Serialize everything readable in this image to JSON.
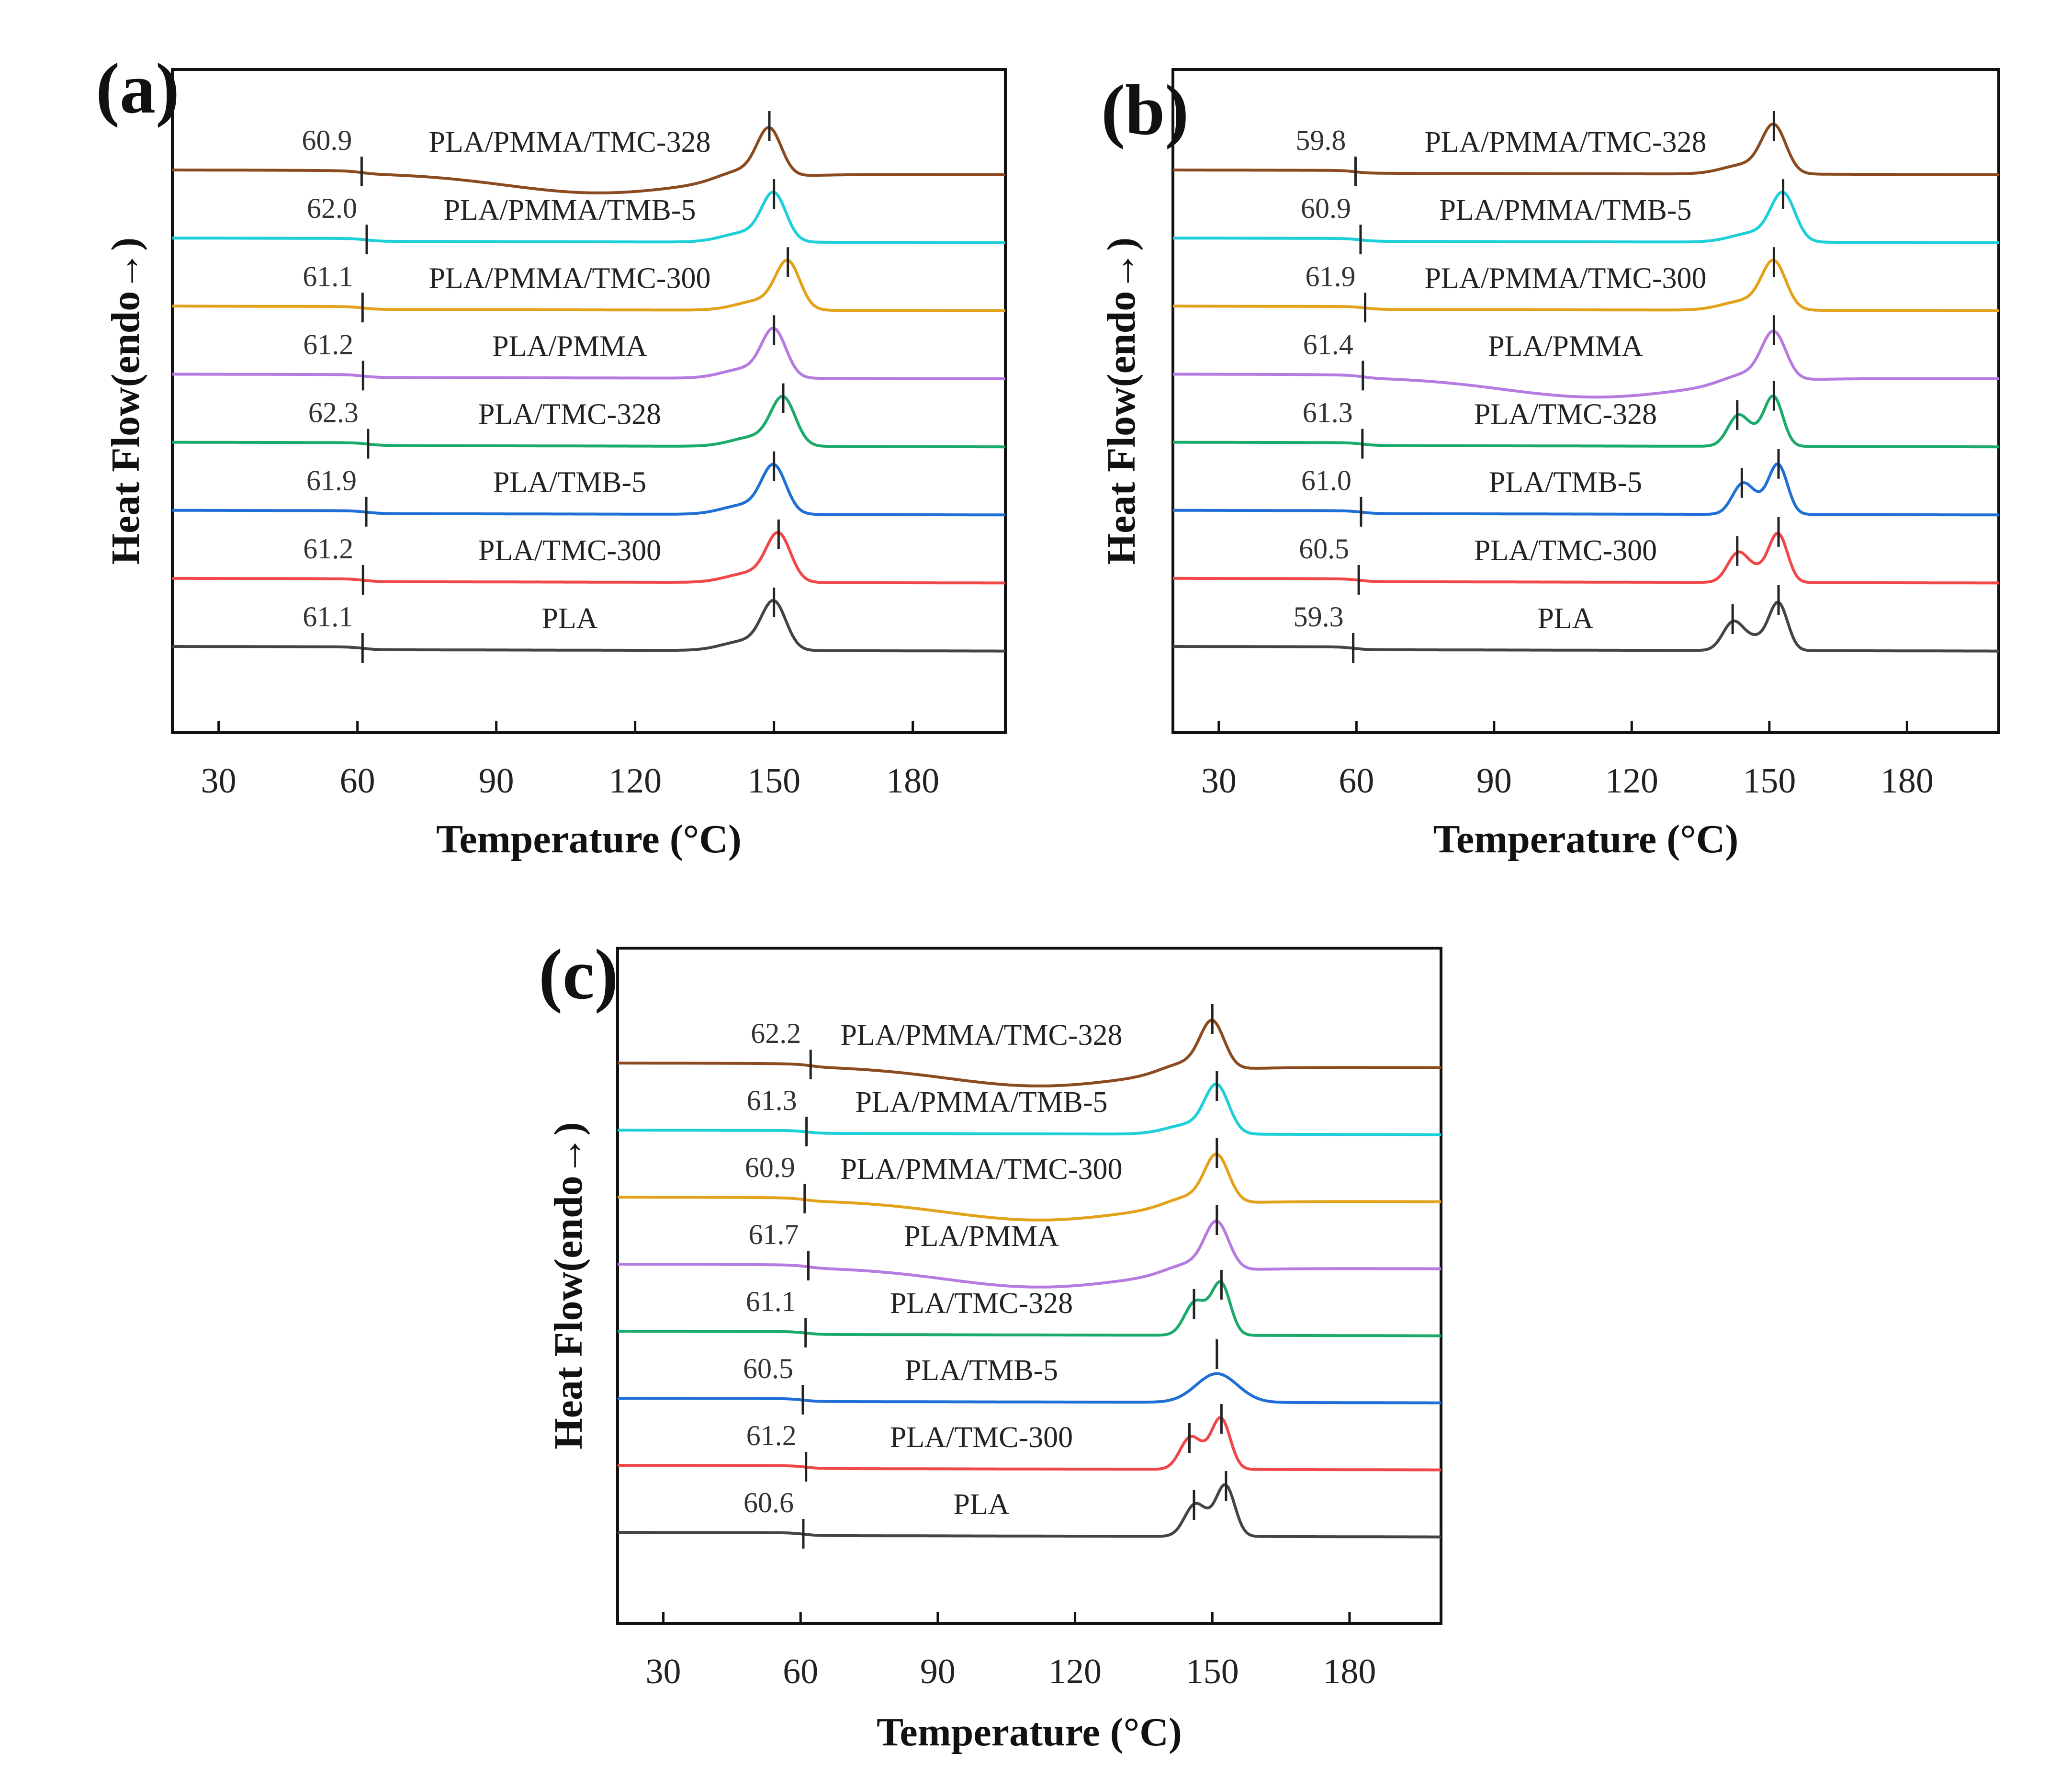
{
  "figure": {
    "panels": [
      {
        "label": "(a)",
        "chart_data": {
          "type": "line",
          "title": "",
          "xlabel": "Temperature (°C)",
          "ylabel": "Heat Flow(endo→)",
          "xlim": [
            20,
            200
          ],
          "xticks": [
            30,
            60,
            90,
            120,
            150,
            180
          ],
          "series": [
            {
              "name": "PLA/PMMA/TMC-328",
              "tg": "60.9",
              "color": "#8b4a1f",
              "tg_x": 60.9,
              "peaks": [
                149
              ],
              "shape": "cold"
            },
            {
              "name": "PLA/PMMA/TMB-5",
              "tg": "62.0",
              "color": "#1ccfd8",
              "tg_x": 62.0,
              "peaks": [
                150
              ],
              "shape": "normal"
            },
            {
              "name": "PLA/PMMA/TMC-300",
              "tg": "61.1",
              "color": "#e3a21a",
              "tg_x": 61.1,
              "peaks": [
                153
              ],
              "shape": "normal"
            },
            {
              "name": "PLA/PMMA",
              "tg": "61.2",
              "color": "#b57be0",
              "tg_x": 61.2,
              "peaks": [
                150
              ],
              "shape": "normal"
            },
            {
              "name": "PLA/TMC-328",
              "tg": "62.3",
              "color": "#1aaa6a",
              "tg_x": 62.3,
              "peaks": [
                152
              ],
              "shape": "normal"
            },
            {
              "name": "PLA/TMB-5",
              "tg": "61.9",
              "color": "#1f6fd6",
              "tg_x": 61.9,
              "peaks": [
                150
              ],
              "shape": "normal"
            },
            {
              "name": "PLA/TMC-300",
              "tg": "61.2",
              "color": "#f04848",
              "tg_x": 61.2,
              "peaks": [
                151
              ],
              "shape": "normal"
            },
            {
              "name": "PLA",
              "tg": "61.1",
              "color": "#444444",
              "tg_x": 61.1,
              "peaks": [
                150
              ],
              "shape": "normal"
            }
          ]
        }
      },
      {
        "label": "(b)",
        "chart_data": {
          "type": "line",
          "title": "",
          "xlabel": "Temperature (°C)",
          "ylabel": "Heat Flow(endo→)",
          "xlim": [
            20,
            200
          ],
          "xticks": [
            30,
            60,
            90,
            120,
            150,
            180
          ],
          "series": [
            {
              "name": "PLA/PMMA/TMC-328",
              "tg": "59.8",
              "color": "#8b4a1f",
              "tg_x": 59.8,
              "peaks": [
                151
              ],
              "shape": "normal"
            },
            {
              "name": "PLA/PMMA/TMB-5",
              "tg": "60.9",
              "color": "#1ccfd8",
              "tg_x": 60.9,
              "peaks": [
                153
              ],
              "shape": "normal"
            },
            {
              "name": "PLA/PMMA/TMC-300",
              "tg": "61.9",
              "color": "#e3a21a",
              "tg_x": 61.9,
              "peaks": [
                151
              ],
              "shape": "normal"
            },
            {
              "name": "PLA/PMMA",
              "tg": "61.4",
              "color": "#b57be0",
              "tg_x": 61.4,
              "peaks": [
                151
              ],
              "shape": "cold"
            },
            {
              "name": "PLA/TMC-328",
              "tg": "61.3",
              "color": "#1aaa6a",
              "tg_x": 61.3,
              "peaks": [
                143,
                151
              ],
              "shape": "double"
            },
            {
              "name": "PLA/TMB-5",
              "tg": "61.0",
              "color": "#1f6fd6",
              "tg_x": 61.0,
              "peaks": [
                144,
                152
              ],
              "shape": "double"
            },
            {
              "name": "PLA/TMC-300",
              "tg": "60.5",
              "color": "#f04848",
              "tg_x": 60.5,
              "peaks": [
                143,
                152
              ],
              "shape": "double"
            },
            {
              "name": "PLA",
              "tg": "59.3",
              "color": "#444444",
              "tg_x": 59.3,
              "peaks": [
                142,
                152
              ],
              "shape": "double"
            }
          ]
        }
      },
      {
        "label": "(c)",
        "chart_data": {
          "type": "line",
          "title": "",
          "xlabel": "Temperature (°C)",
          "ylabel": "Heat Flow(endo→)",
          "xlim": [
            20,
            200
          ],
          "xticks": [
            30,
            60,
            90,
            120,
            150,
            180
          ],
          "series": [
            {
              "name": "PLA/PMMA/TMC-328",
              "tg": "62.2",
              "color": "#8b4a1f",
              "tg_x": 62.2,
              "peaks": [
                150
              ],
              "shape": "cold"
            },
            {
              "name": "PLA/PMMA/TMB-5",
              "tg": "61.3",
              "color": "#1ccfd8",
              "tg_x": 61.3,
              "peaks": [
                151
              ],
              "shape": "normal"
            },
            {
              "name": "PLA/PMMA/TMC-300",
              "tg": "60.9",
              "color": "#e3a21a",
              "tg_x": 60.9,
              "peaks": [
                151
              ],
              "shape": "cold"
            },
            {
              "name": "PLA/PMMA",
              "tg": "61.7",
              "color": "#b57be0",
              "tg_x": 61.7,
              "peaks": [
                151
              ],
              "shape": "cold"
            },
            {
              "name": "PLA/TMC-328",
              "tg": "61.1",
              "color": "#1aaa6a",
              "tg_x": 61.1,
              "peaks": [
                146,
                152
              ],
              "shape": "double"
            },
            {
              "name": "PLA/TMB-5",
              "tg": "60.5",
              "color": "#1f6fd6",
              "tg_x": 60.5,
              "peaks": [
                151
              ],
              "shape": "broad"
            },
            {
              "name": "PLA/TMC-300",
              "tg": "61.2",
              "color": "#f04848",
              "tg_x": 61.2,
              "peaks": [
                145,
                152
              ],
              "shape": "double"
            },
            {
              "name": "PLA",
              "tg": "60.6",
              "color": "#444444",
              "tg_x": 60.6,
              "peaks": [
                146,
                153
              ],
              "shape": "double"
            }
          ]
        }
      }
    ]
  }
}
